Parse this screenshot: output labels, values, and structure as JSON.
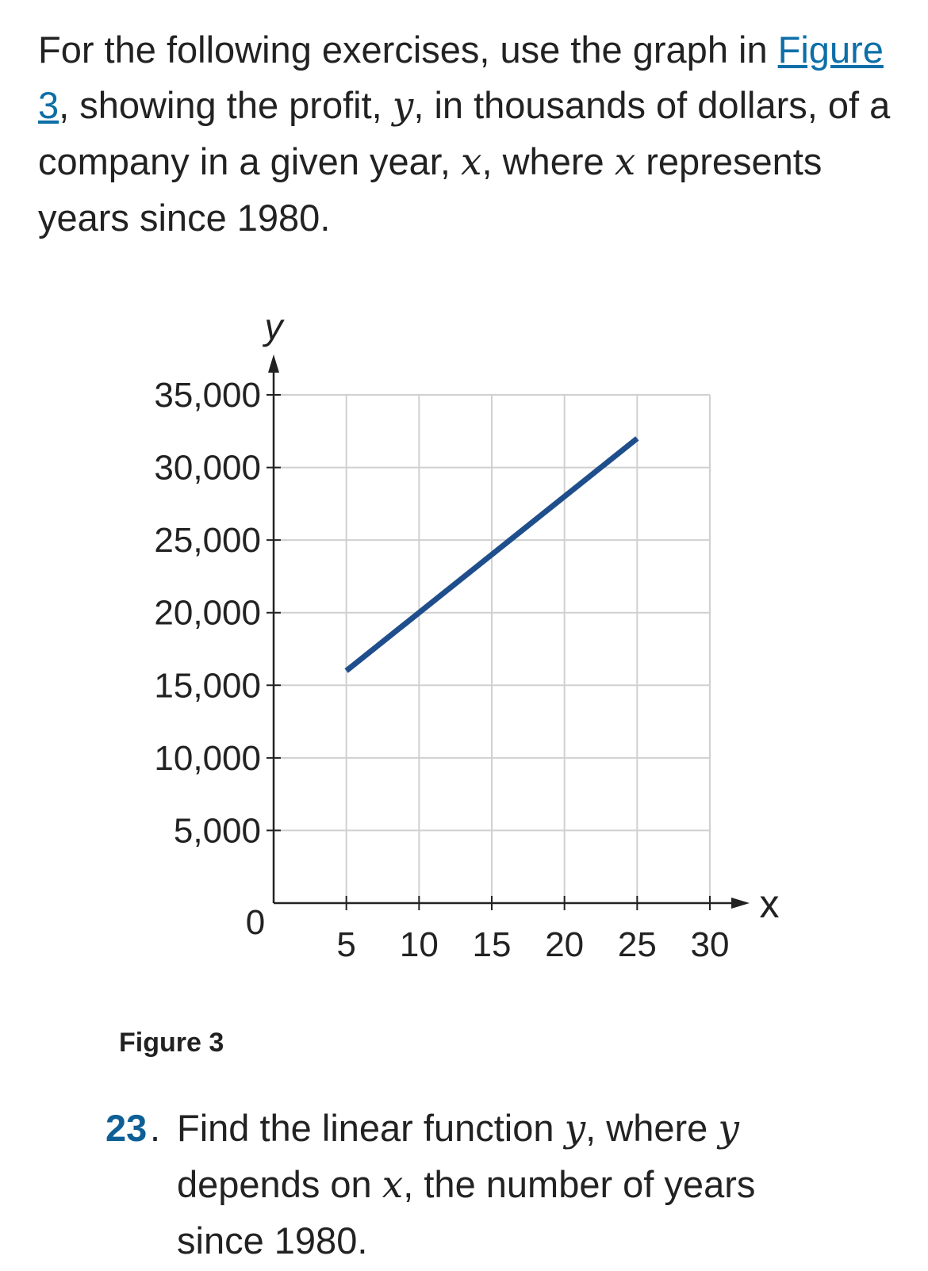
{
  "intro": {
    "part1": "For the following exercises, use the graph in ",
    "link": "Figure 3",
    "part2": ", showing the profit, ",
    "var_y": "y",
    "part3": ", in thousands of dollars, of a company in a given year, ",
    "var_x": "x",
    "part4": ", where ",
    "var_x2": "x",
    "part5": " represents years since 1980."
  },
  "figure": {
    "caption": "Figure 3"
  },
  "exercise": {
    "number": "23",
    "dot": ".",
    "t1": "Find the linear function ",
    "v1": "y",
    "t2": ", where ",
    "v2": "y",
    "t3": " depends on ",
    "v3": "x",
    "t4": ", the number of years since 1980."
  },
  "chart_data": {
    "type": "line",
    "xlabel": "x",
    "ylabel": "y",
    "xlim": [
      0,
      30
    ],
    "ylim": [
      0,
      35000
    ],
    "x_ticks": [
      5,
      10,
      15,
      20,
      25,
      30
    ],
    "x_tick_labels": [
      "5",
      "10",
      "15",
      "20",
      "25",
      "30"
    ],
    "y_ticks": [
      5000,
      10000,
      15000,
      20000,
      25000,
      30000,
      35000
    ],
    "y_tick_labels": [
      "5,000",
      "10,000",
      "15,000",
      "20,000",
      "25,000",
      "30,000",
      "35,000"
    ],
    "origin_label": "0",
    "grid": true,
    "series": [
      {
        "x": [
          5,
          25
        ],
        "y": [
          16000,
          32000
        ]
      }
    ],
    "colors": {
      "line": "#1f4e8c",
      "grid": "#d0d0d0",
      "axis": "#222222"
    }
  }
}
